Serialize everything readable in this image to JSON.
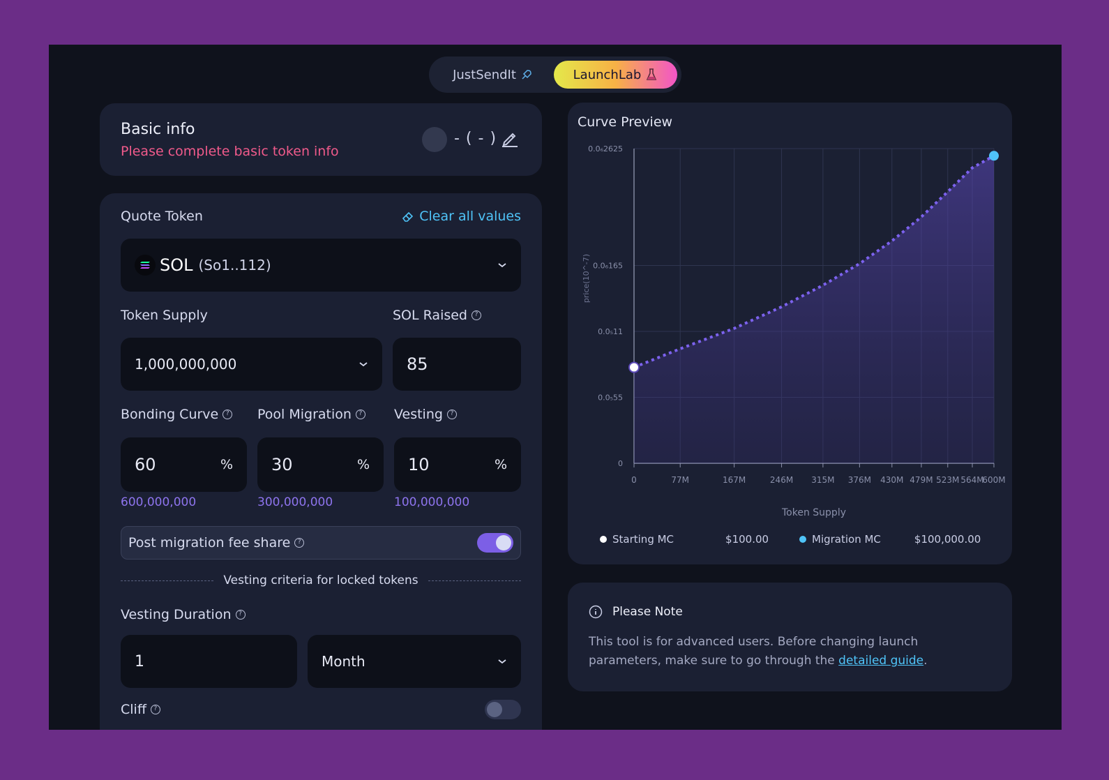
{
  "switch": {
    "option1": "JustSendIt",
    "option2": "LaunchLab"
  },
  "basic_info": {
    "title": "Basic info",
    "warning": "Please complete basic token info",
    "ticker": "- ( - )"
  },
  "form": {
    "quote_token_label": "Quote Token",
    "clear_label": "Clear all values",
    "quote_token_symbol": "SOL",
    "quote_token_address": "(So1..112)",
    "token_supply_label": "Token Supply",
    "token_supply_value": "1,000,000,000",
    "sol_raised_label": "SOL Raised",
    "sol_raised_value": "85",
    "bonding_label": "Bonding Curve",
    "bonding_value": "60",
    "bonding_tokens": "600,000,000",
    "migration_label": "Pool Migration",
    "migration_value": "30",
    "migration_tokens": "300,000,000",
    "vesting_label": "Vesting",
    "vesting_value": "10",
    "vesting_tokens": "100,000,000",
    "percent_sign": "%",
    "fee_share_label": "Post migration fee share",
    "fee_share_on": true,
    "vesting_criteria": "Vesting criteria for locked tokens",
    "vesting_duration_label": "Vesting Duration",
    "vesting_duration_value": "1",
    "vesting_unit": "Month",
    "cliff_label": "Cliff",
    "cliff_on": false
  },
  "chart_title": "Curve Preview",
  "chart_data": {
    "type": "area",
    "x": [
      0,
      77,
      167,
      246,
      315,
      376,
      430,
      479,
      523,
      564,
      600
    ],
    "x_tick_labels": [
      "0",
      "77M",
      "167M",
      "246M",
      "315M",
      "376M",
      "430M",
      "479M",
      "523M",
      "564M",
      "600M"
    ],
    "y_tick_labels": [
      "0",
      "0.0₅55",
      "0.0₅11",
      "0.0₆165",
      "0.0₆2625"
    ],
    "y_tick_values": [
      0,
      0.055,
      0.11,
      0.165,
      0.2625
    ],
    "xlabel": "Token Supply",
    "ylabel": "price(10^-7)",
    "series": [
      {
        "values": [
          0.08,
          0.0955,
          0.1125,
          0.1305,
          0.1485,
          0.1665,
          0.1855,
          0.2055,
          0.2265,
          0.2465,
          0.2565
        ]
      }
    ],
    "start_point": {
      "x": 0,
      "y": 0.08
    },
    "end_point": {
      "x": 600,
      "y": 0.2565
    },
    "legend": [
      {
        "label": "Starting MC",
        "value": "$100.00",
        "color": "#ffffff"
      },
      {
        "label": "Migration MC",
        "value": "$100,000.00",
        "color": "#4fc3f7"
      }
    ]
  },
  "note": {
    "title": "Please Note",
    "text": "This tool is for advanced users. Before changing launch parameters, make sure to go through the ",
    "link": "detailed guide",
    "end": "."
  },
  "colors": {
    "accent": "#7c5fe6",
    "link": "#4fc3f7",
    "warning": "#f05a8b",
    "background": "#6b2d87"
  }
}
